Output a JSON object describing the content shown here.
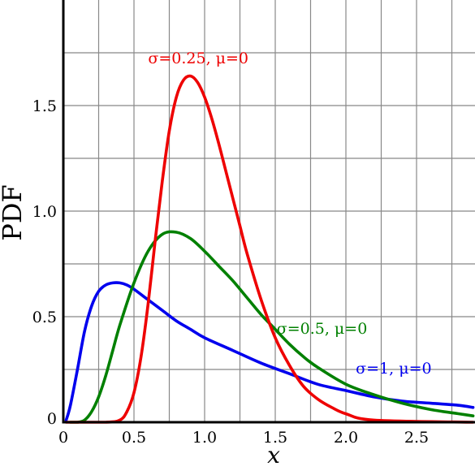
{
  "chart_data": {
    "type": "line",
    "xlabel": "x",
    "ylabel": "PDF",
    "xlim": [
      0,
      2.9
    ],
    "ylim": [
      0,
      1.95
    ],
    "grid": true,
    "x_ticks": [
      0,
      0.5,
      1.0,
      1.5,
      2.0,
      2.5
    ],
    "x_tick_labels": [
      "0",
      "0.5",
      "1.0",
      "1.5",
      "2.0",
      "2.5"
    ],
    "y_ticks": [
      0,
      0.5,
      1.0,
      1.5
    ],
    "y_tick_labels": [
      "0",
      "0.5",
      "1.0",
      "1.5"
    ],
    "series": [
      {
        "name": "σ=1, μ=0",
        "sigma": 1,
        "mu": 0,
        "color": "#0000ee",
        "x": [
          0.02,
          0.05,
          0.1,
          0.15,
          0.2,
          0.25,
          0.3,
          0.35,
          0.4,
          0.45,
          0.5,
          0.6,
          0.7,
          0.8,
          0.9,
          1.0,
          1.2,
          1.4,
          1.6,
          1.8,
          2.0,
          2.2,
          2.4,
          2.6,
          2.8,
          2.9
        ],
        "y": [
          0.01,
          0.08,
          0.25,
          0.43,
          0.55,
          0.62,
          0.65,
          0.66,
          0.66,
          0.65,
          0.63,
          0.58,
          0.53,
          0.48,
          0.44,
          0.4,
          0.34,
          0.28,
          0.23,
          0.18,
          0.15,
          0.12,
          0.1,
          0.09,
          0.08,
          0.07
        ]
      },
      {
        "name": "σ=0.5, μ=0",
        "sigma": 0.5,
        "mu": 0,
        "color": "#008000",
        "x": [
          0.05,
          0.1,
          0.15,
          0.2,
          0.25,
          0.3,
          0.35,
          0.4,
          0.5,
          0.6,
          0.7,
          0.8,
          0.9,
          1.0,
          1.1,
          1.2,
          1.3,
          1.4,
          1.5,
          1.6,
          1.7,
          1.8,
          2.0,
          2.2,
          2.4,
          2.6,
          2.8,
          2.9
        ],
        "y": [
          0.0,
          0.0,
          0.01,
          0.05,
          0.12,
          0.22,
          0.34,
          0.46,
          0.66,
          0.81,
          0.89,
          0.9,
          0.87,
          0.81,
          0.74,
          0.67,
          0.59,
          0.51,
          0.44,
          0.37,
          0.31,
          0.26,
          0.18,
          0.13,
          0.09,
          0.06,
          0.04,
          0.03
        ]
      },
      {
        "name": "σ=0.25, μ=0",
        "sigma": 0.25,
        "mu": 0,
        "color": "#ee0000",
        "x": [
          0.02,
          0.3,
          0.4,
          0.45,
          0.5,
          0.55,
          0.6,
          0.65,
          0.7,
          0.75,
          0.8,
          0.85,
          0.9,
          0.95,
          1.0,
          1.05,
          1.1,
          1.15,
          1.2,
          1.25,
          1.3,
          1.4,
          1.5,
          1.6,
          1.7,
          1.8,
          1.9,
          2.0,
          2.2,
          2.9
        ],
        "y": [
          0.0,
          0.0,
          0.01,
          0.05,
          0.14,
          0.31,
          0.56,
          0.86,
          1.14,
          1.38,
          1.54,
          1.62,
          1.64,
          1.61,
          1.54,
          1.44,
          1.32,
          1.19,
          1.06,
          0.93,
          0.8,
          0.58,
          0.4,
          0.27,
          0.17,
          0.11,
          0.07,
          0.04,
          0.01,
          0.0
        ]
      }
    ],
    "annotations": [
      {
        "text": "σ=0.25, μ=0",
        "series": 2,
        "color": "#ee0000",
        "x": 0.6,
        "y": 1.7
      },
      {
        "text": "σ=0.5, μ=0",
        "series": 1,
        "color": "#008000",
        "x": 1.51,
        "y": 0.42
      },
      {
        "text": "σ=1, μ=0",
        "series": 0,
        "color": "#0000ee",
        "x": 2.07,
        "y": 0.23
      }
    ]
  }
}
